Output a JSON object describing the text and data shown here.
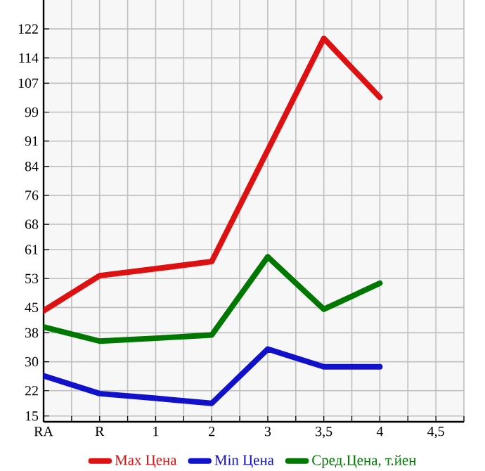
{
  "chart_data": {
    "type": "line",
    "categories": [
      "RA",
      "R",
      "1",
      "2",
      "3",
      "3,5",
      "4",
      "4,5"
    ],
    "series": [
      {
        "name": "Max Цена",
        "color": "#dd1111",
        "values": [
          44.1,
          53.8,
          55.7,
          57.7,
          88.5,
          119.4,
          103.1,
          null
        ]
      },
      {
        "name": "Min Цена",
        "color": "#1111cc",
        "values": [
          26.1,
          21.2,
          19.9,
          18.5,
          33.5,
          28.6,
          28.6,
          null
        ]
      },
      {
        "name": "Сред.Цена, т.йен",
        "color": "#007700",
        "values": [
          39.6,
          35.7,
          36.5,
          37.4,
          59.0,
          44.5,
          51.7,
          null
        ]
      }
    ],
    "ylim": [
      13.4,
      130
    ],
    "yticks": [
      15,
      22,
      30,
      38,
      45,
      53,
      61,
      68,
      76,
      84,
      91,
      99,
      107,
      114,
      122
    ],
    "grid": true,
    "legend": "bottom",
    "marker": "none",
    "line_style": "solid"
  }
}
